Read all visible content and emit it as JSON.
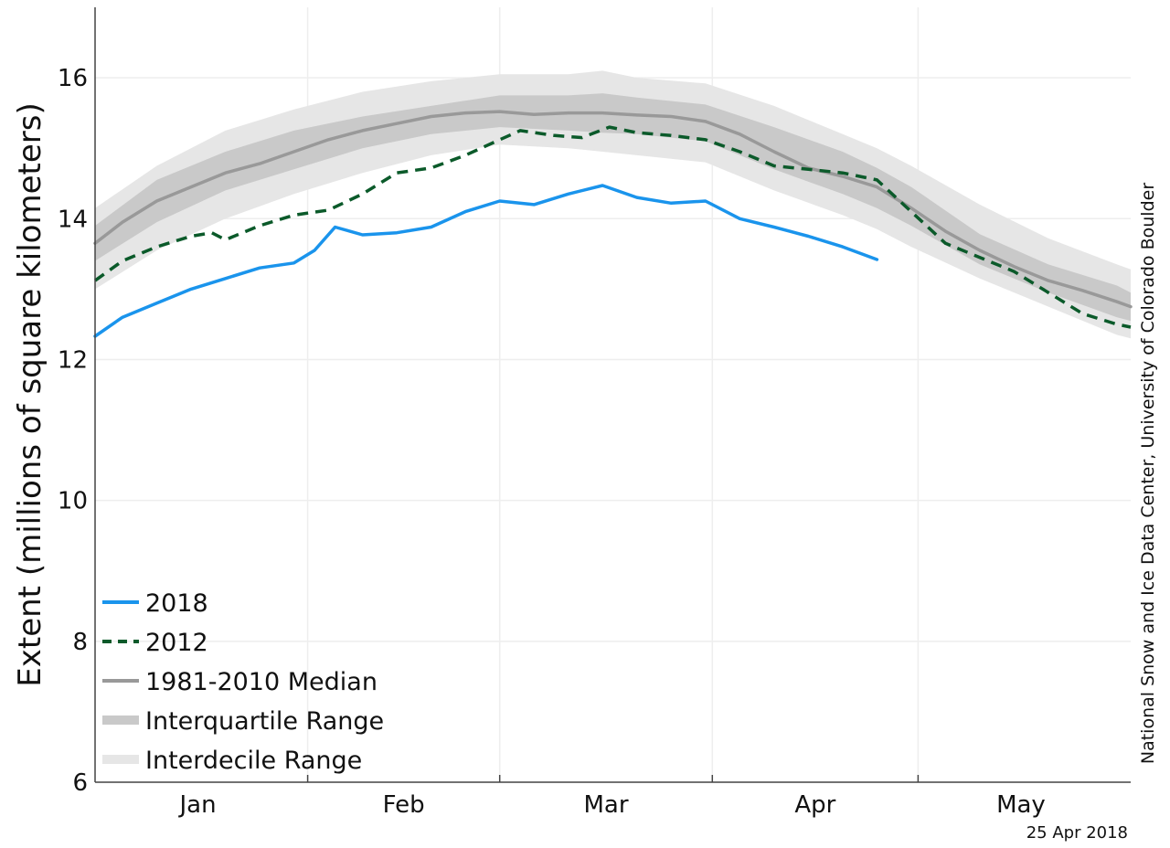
{
  "chart_data": {
    "type": "line",
    "title": "",
    "ylabel": "Extent (millions of square kilometers)",
    "xlabel": "",
    "ylim": [
      6,
      17
    ],
    "x_unit": "day of year",
    "xlim": [
      1,
      152
    ],
    "yticks": [
      6,
      8,
      10,
      12,
      14,
      16
    ],
    "month_labels": [
      {
        "label": "Jan",
        "day": 16
      },
      {
        "label": "Feb",
        "day": 46
      },
      {
        "label": "Mar",
        "day": 75.5
      },
      {
        "label": "Apr",
        "day": 106
      },
      {
        "label": "May",
        "day": 136
      }
    ],
    "month_boundaries": [
      32,
      60,
      91,
      121
    ],
    "grid": true,
    "legend_position": "lower-left",
    "credit": "National Snow and Ice Data Center, University of Colorado Boulder",
    "date_label": "25 Apr 2018",
    "series": [
      {
        "name": "2018",
        "color": "#1a94ec",
        "style": "solid",
        "x": [
          1,
          5,
          10,
          15,
          20,
          25,
          30,
          33,
          36,
          40,
          45,
          50,
          55,
          60,
          65,
          70,
          75,
          80,
          85,
          90,
          95,
          100,
          105,
          110,
          115
        ],
        "y": [
          12.33,
          12.6,
          12.8,
          13.0,
          13.15,
          13.3,
          13.37,
          13.55,
          13.88,
          13.77,
          13.8,
          13.88,
          14.1,
          14.25,
          14.2,
          14.35,
          14.47,
          14.3,
          14.22,
          14.25,
          14.0,
          13.88,
          13.75,
          13.6,
          13.42
        ]
      },
      {
        "name": "2012",
        "color": "#0b5a2a",
        "style": "dashed",
        "x": [
          1,
          5,
          10,
          15,
          18,
          20,
          25,
          30,
          35,
          40,
          45,
          50,
          55,
          60,
          63,
          68,
          72,
          76,
          80,
          85,
          90,
          95,
          100,
          105,
          110,
          115,
          120,
          125,
          130,
          135,
          140,
          145,
          150,
          152
        ],
        "y": [
          13.12,
          13.4,
          13.6,
          13.75,
          13.8,
          13.7,
          13.9,
          14.05,
          14.12,
          14.35,
          14.65,
          14.72,
          14.9,
          15.12,
          15.25,
          15.18,
          15.15,
          15.3,
          15.22,
          15.18,
          15.12,
          14.95,
          14.75,
          14.7,
          14.65,
          14.55,
          14.1,
          13.65,
          13.45,
          13.25,
          12.95,
          12.65,
          12.5,
          12.46
        ]
      },
      {
        "name": "1981-2010 Median",
        "color": "#999999",
        "style": "solid",
        "x": [
          1,
          5,
          10,
          15,
          20,
          25,
          30,
          35,
          40,
          45,
          50,
          55,
          60,
          65,
          70,
          75,
          80,
          85,
          90,
          95,
          100,
          105,
          110,
          115,
          120,
          125,
          130,
          135,
          140,
          145,
          150,
          152
        ],
        "y": [
          13.65,
          13.95,
          14.25,
          14.45,
          14.65,
          14.78,
          14.95,
          15.12,
          15.25,
          15.35,
          15.45,
          15.5,
          15.52,
          15.48,
          15.5,
          15.5,
          15.47,
          15.45,
          15.38,
          15.2,
          14.95,
          14.72,
          14.6,
          14.45,
          14.15,
          13.82,
          13.55,
          13.32,
          13.12,
          12.98,
          12.82,
          12.75
        ]
      }
    ],
    "bands": [
      {
        "name": "Interquartile Range",
        "color": "#c9c9c9",
        "x": [
          1,
          10,
          20,
          30,
          40,
          50,
          60,
          70,
          75,
          80,
          90,
          100,
          110,
          115,
          120,
          130,
          140,
          150,
          152
        ],
        "lower": [
          13.4,
          13.95,
          14.4,
          14.7,
          15.0,
          15.2,
          15.3,
          15.25,
          15.22,
          15.2,
          15.1,
          14.7,
          14.35,
          14.15,
          13.9,
          13.35,
          12.95,
          12.6,
          12.55
        ],
        "upper": [
          13.9,
          14.55,
          14.95,
          15.25,
          15.45,
          15.6,
          15.75,
          15.75,
          15.78,
          15.72,
          15.62,
          15.3,
          14.95,
          14.72,
          14.45,
          13.78,
          13.35,
          13.05,
          12.95
        ]
      },
      {
        "name": "Interdecile Range",
        "color": "#e6e6e6",
        "x": [
          1,
          10,
          20,
          30,
          40,
          50,
          60,
          70,
          75,
          80,
          90,
          100,
          110,
          115,
          120,
          130,
          140,
          150,
          152
        ],
        "lower": [
          13.0,
          13.55,
          14.0,
          14.35,
          14.65,
          14.9,
          15.05,
          15.0,
          14.95,
          14.9,
          14.8,
          14.4,
          14.05,
          13.85,
          13.6,
          13.15,
          12.75,
          12.35,
          12.3
        ],
        "upper": [
          14.15,
          14.75,
          15.25,
          15.55,
          15.8,
          15.95,
          16.05,
          16.05,
          16.1,
          16.0,
          15.92,
          15.6,
          15.2,
          15.0,
          14.75,
          14.2,
          13.72,
          13.35,
          13.28
        ]
      }
    ]
  }
}
